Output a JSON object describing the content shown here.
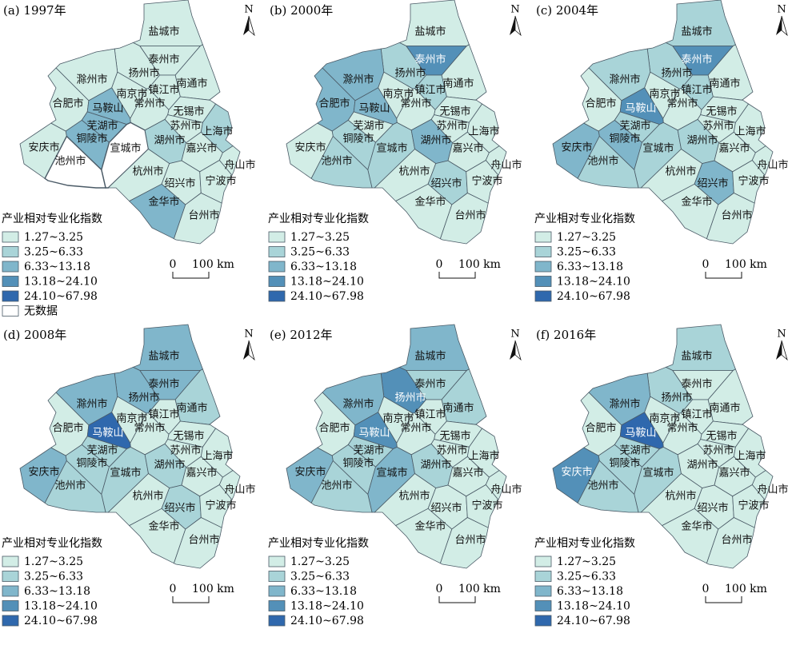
{
  "panels": [
    {
      "title": "(a) 1997年",
      "regions": [
        {
          "name": "盐城市",
          "color": "#d2ede6"
        },
        {
          "name": "泰州市",
          "color": "#d2ede6"
        },
        {
          "name": "扬州市",
          "color": "#d2ede6"
        },
        {
          "name": "南通市",
          "color": "#d2ede6"
        },
        {
          "name": "滁州市",
          "color": "#d2ede6"
        },
        {
          "name": "镇江市",
          "color": "#d2ede6"
        },
        {
          "name": "南京市",
          "color": "#d2ede6"
        },
        {
          "name": "合肥市",
          "color": "#d2ede6"
        },
        {
          "name": "马鞍山",
          "color": "#80b6cb"
        },
        {
          "name": "常州市",
          "color": "#d2ede6"
        },
        {
          "name": "无锡市",
          "color": "#d2ede6"
        },
        {
          "name": "苏州市",
          "color": "#d2ede6"
        },
        {
          "name": "上海市",
          "color": "#a9d4d8"
        },
        {
          "name": "芜湖市",
          "color": "#80b6cb"
        },
        {
          "name": "铜陵市",
          "color": "#80b6cb"
        },
        {
          "name": "宣城市",
          "color": "#ffffff"
        },
        {
          "name": "湖州市",
          "color": "#a9d4d8"
        },
        {
          "name": "安庆市",
          "color": "#d2ede6"
        },
        {
          "name": "池州市",
          "color": "#ffffff"
        },
        {
          "name": "嘉兴市",
          "color": "#d2ede6"
        },
        {
          "name": "舟山市",
          "color": "#d2ede6"
        },
        {
          "name": "杭州市",
          "color": "#d2ede6"
        },
        {
          "name": "绍兴市",
          "color": "#d2ede6"
        },
        {
          "name": "宁波市",
          "color": "#d2ede6"
        },
        {
          "name": "金华市",
          "color": "#80b6cb"
        },
        {
          "name": "台州市",
          "color": "#d2ede6"
        }
      ],
      "legend": {
        "title": "产业相对专业化指数",
        "classes": [
          {
            "label": "1.27~3.25",
            "color": "#d2ede6"
          },
          {
            "label": "3.25~6.33",
            "color": "#a9d4d8"
          },
          {
            "label": "6.33~13.18",
            "color": "#80b6cb"
          },
          {
            "label": "13.18~24.10",
            "color": "#5390b8"
          },
          {
            "label": "24.10~67.98",
            "color": "#2f68ad"
          },
          {
            "label": "无数据",
            "color": "#ffffff"
          }
        ]
      },
      "scale": {
        "start": "0",
        "end": "100 km"
      },
      "north": "N"
    },
    {
      "title": "(b) 2000年",
      "regions": [
        {
          "name": "盐城市",
          "color": "#d2ede6"
        },
        {
          "name": "泰州市",
          "color": "#5390b8"
        },
        {
          "name": "扬州市",
          "color": "#a9d4d8"
        },
        {
          "name": "南通市",
          "color": "#d2ede6"
        },
        {
          "name": "滁州市",
          "color": "#80b6cb"
        },
        {
          "name": "镇江市",
          "color": "#a9d4d8"
        },
        {
          "name": "南京市",
          "color": "#d2ede6"
        },
        {
          "name": "合肥市",
          "color": "#80b6cb"
        },
        {
          "name": "马鞍山",
          "color": "#80b6cb"
        },
        {
          "name": "常州市",
          "color": "#d2ede6"
        },
        {
          "name": "无锡市",
          "color": "#d2ede6"
        },
        {
          "name": "苏州市",
          "color": "#d2ede6"
        },
        {
          "name": "上海市",
          "color": "#d2ede6"
        },
        {
          "name": "芜湖市",
          "color": "#d2ede6"
        },
        {
          "name": "铜陵市",
          "color": "#a9d4d8"
        },
        {
          "name": "宣城市",
          "color": "#a9d4d8"
        },
        {
          "name": "湖州市",
          "color": "#80b6cb"
        },
        {
          "name": "安庆市",
          "color": "#d2ede6"
        },
        {
          "name": "池州市",
          "color": "#a9d4d8"
        },
        {
          "name": "嘉兴市",
          "color": "#d2ede6"
        },
        {
          "name": "舟山市",
          "color": "#d2ede6"
        },
        {
          "name": "杭州市",
          "color": "#d2ede6"
        },
        {
          "name": "绍兴市",
          "color": "#a9d4d8"
        },
        {
          "name": "宁波市",
          "color": "#d2ede6"
        },
        {
          "name": "金华市",
          "color": "#d2ede6"
        },
        {
          "name": "台州市",
          "color": "#d2ede6"
        }
      ],
      "legend": {
        "title": "产业相对专业化指数",
        "classes": [
          {
            "label": "1.27~3.25",
            "color": "#d2ede6"
          },
          {
            "label": "3.25~6.33",
            "color": "#a9d4d8"
          },
          {
            "label": "6.33~13.18",
            "color": "#80b6cb"
          },
          {
            "label": "13.18~24.10",
            "color": "#5390b8"
          },
          {
            "label": "24.10~67.98",
            "color": "#2f68ad"
          }
        ]
      },
      "scale": {
        "start": "0",
        "end": "100 km"
      },
      "north": "N"
    },
    {
      "title": "(c) 2004年",
      "regions": [
        {
          "name": "盐城市",
          "color": "#a9d4d8"
        },
        {
          "name": "泰州市",
          "color": "#5390b8"
        },
        {
          "name": "扬州市",
          "color": "#a9d4d8"
        },
        {
          "name": "南通市",
          "color": "#d2ede6"
        },
        {
          "name": "滁州市",
          "color": "#a9d4d8"
        },
        {
          "name": "镇江市",
          "color": "#a9d4d8"
        },
        {
          "name": "南京市",
          "color": "#d2ede6"
        },
        {
          "name": "合肥市",
          "color": "#d2ede6"
        },
        {
          "name": "马鞍山",
          "color": "#5390b8"
        },
        {
          "name": "常州市",
          "color": "#d2ede6"
        },
        {
          "name": "无锡市",
          "color": "#d2ede6"
        },
        {
          "name": "苏州市",
          "color": "#d2ede6"
        },
        {
          "name": "上海市",
          "color": "#d2ede6"
        },
        {
          "name": "芜湖市",
          "color": "#a9d4d8"
        },
        {
          "name": "铜陵市",
          "color": "#80b6cb"
        },
        {
          "name": "宣城市",
          "color": "#a9d4d8"
        },
        {
          "name": "湖州市",
          "color": "#a9d4d8"
        },
        {
          "name": "安庆市",
          "color": "#80b6cb"
        },
        {
          "name": "池州市",
          "color": "#a9d4d8"
        },
        {
          "name": "嘉兴市",
          "color": "#d2ede6"
        },
        {
          "name": "舟山市",
          "color": "#d2ede6"
        },
        {
          "name": "杭州市",
          "color": "#d2ede6"
        },
        {
          "name": "绍兴市",
          "color": "#80b6cb"
        },
        {
          "name": "宁波市",
          "color": "#d2ede6"
        },
        {
          "name": "金华市",
          "color": "#d2ede6"
        },
        {
          "name": "台州市",
          "color": "#d2ede6"
        }
      ],
      "legend": {
        "title": "产业相对专业化指数",
        "classes": [
          {
            "label": "1.27~3.25",
            "color": "#d2ede6"
          },
          {
            "label": "3.25~6.33",
            "color": "#a9d4d8"
          },
          {
            "label": "6.33~13.18",
            "color": "#80b6cb"
          },
          {
            "label": "13.18~24.10",
            "color": "#5390b8"
          },
          {
            "label": "24.10~67.98",
            "color": "#2f68ad"
          }
        ]
      },
      "scale": {
        "start": "0",
        "end": "100 km"
      },
      "north": "N"
    },
    {
      "title": "(d) 2008年",
      "regions": [
        {
          "name": "盐城市",
          "color": "#80b6cb"
        },
        {
          "name": "泰州市",
          "color": "#80b6cb"
        },
        {
          "name": "扬州市",
          "color": "#80b6cb"
        },
        {
          "name": "南通市",
          "color": "#a9d4d8"
        },
        {
          "name": "滁州市",
          "color": "#80b6cb"
        },
        {
          "name": "镇江市",
          "color": "#d2ede6"
        },
        {
          "name": "南京市",
          "color": "#d2ede6"
        },
        {
          "name": "合肥市",
          "color": "#d2ede6"
        },
        {
          "name": "马鞍山",
          "color": "#2f68ad"
        },
        {
          "name": "常州市",
          "color": "#d2ede6"
        },
        {
          "name": "无锡市",
          "color": "#d2ede6"
        },
        {
          "name": "苏州市",
          "color": "#d2ede6"
        },
        {
          "name": "上海市",
          "color": "#d2ede6"
        },
        {
          "name": "芜湖市",
          "color": "#a9d4d8"
        },
        {
          "name": "铜陵市",
          "color": "#a9d4d8"
        },
        {
          "name": "宣城市",
          "color": "#a9d4d8"
        },
        {
          "name": "湖州市",
          "color": "#a9d4d8"
        },
        {
          "name": "安庆市",
          "color": "#80b6cb"
        },
        {
          "name": "池州市",
          "color": "#a9d4d8"
        },
        {
          "name": "嘉兴市",
          "color": "#d2ede6"
        },
        {
          "name": "舟山市",
          "color": "#d2ede6"
        },
        {
          "name": "杭州市",
          "color": "#d2ede6"
        },
        {
          "name": "绍兴市",
          "color": "#a9d4d8"
        },
        {
          "name": "宁波市",
          "color": "#d2ede6"
        },
        {
          "name": "金华市",
          "color": "#d2ede6"
        },
        {
          "name": "台州市",
          "color": "#d2ede6"
        }
      ],
      "legend": {
        "title": "产业相对专业化指数",
        "classes": [
          {
            "label": "1.27~3.25",
            "color": "#d2ede6"
          },
          {
            "label": "3.25~6.33",
            "color": "#a9d4d8"
          },
          {
            "label": "6.33~13.18",
            "color": "#80b6cb"
          },
          {
            "label": "13.18~24.10",
            "color": "#5390b8"
          },
          {
            "label": "24.10~67.98",
            "color": "#2f68ad"
          }
        ]
      },
      "scale": {
        "start": "0",
        "end": "100 km"
      },
      "north": "N"
    },
    {
      "title": "(e) 2012年",
      "regions": [
        {
          "name": "盐城市",
          "color": "#80b6cb"
        },
        {
          "name": "泰州市",
          "color": "#a9d4d8"
        },
        {
          "name": "扬州市",
          "color": "#5390b8"
        },
        {
          "name": "南通市",
          "color": "#a9d4d8"
        },
        {
          "name": "滁州市",
          "color": "#80b6cb"
        },
        {
          "name": "镇江市",
          "color": "#d2ede6"
        },
        {
          "name": "南京市",
          "color": "#d2ede6"
        },
        {
          "name": "合肥市",
          "color": "#d2ede6"
        },
        {
          "name": "马鞍山",
          "color": "#5390b8"
        },
        {
          "name": "常州市",
          "color": "#d2ede6"
        },
        {
          "name": "无锡市",
          "color": "#d2ede6"
        },
        {
          "name": "苏州市",
          "color": "#d2ede6"
        },
        {
          "name": "上海市",
          "color": "#d2ede6"
        },
        {
          "name": "芜湖市",
          "color": "#a9d4d8"
        },
        {
          "name": "铜陵市",
          "color": "#a9d4d8"
        },
        {
          "name": "宣城市",
          "color": "#80b6cb"
        },
        {
          "name": "湖州市",
          "color": "#a9d4d8"
        },
        {
          "name": "安庆市",
          "color": "#80b6cb"
        },
        {
          "name": "池州市",
          "color": "#a9d4d8"
        },
        {
          "name": "嘉兴市",
          "color": "#d2ede6"
        },
        {
          "name": "舟山市",
          "color": "#d2ede6"
        },
        {
          "name": "杭州市",
          "color": "#d2ede6"
        },
        {
          "name": "绍兴市",
          "color": "#d2ede6"
        },
        {
          "name": "宁波市",
          "color": "#d2ede6"
        },
        {
          "name": "金华市",
          "color": "#d2ede6"
        },
        {
          "name": "台州市",
          "color": "#d2ede6"
        }
      ],
      "legend": {
        "title": "产业相对专业化指数",
        "classes": [
          {
            "label": "1.27~3.25",
            "color": "#d2ede6"
          },
          {
            "label": "3.25~6.33",
            "color": "#a9d4d8"
          },
          {
            "label": "6.33~13.18",
            "color": "#80b6cb"
          },
          {
            "label": "13.18~24.10",
            "color": "#5390b8"
          },
          {
            "label": "24.10~67.98",
            "color": "#2f68ad"
          }
        ]
      },
      "scale": {
        "start": "0",
        "end": "100 km"
      },
      "north": "N"
    },
    {
      "title": "(f) 2016年",
      "regions": [
        {
          "name": "盐城市",
          "color": "#a9d4d8"
        },
        {
          "name": "泰州市",
          "color": "#d2ede6"
        },
        {
          "name": "扬州市",
          "color": "#a9d4d8"
        },
        {
          "name": "南通市",
          "color": "#d2ede6"
        },
        {
          "name": "滁州市",
          "color": "#80b6cb"
        },
        {
          "name": "镇江市",
          "color": "#d2ede6"
        },
        {
          "name": "南京市",
          "color": "#d2ede6"
        },
        {
          "name": "合肥市",
          "color": "#d2ede6"
        },
        {
          "name": "马鞍山",
          "color": "#2f68ad"
        },
        {
          "name": "常州市",
          "color": "#d2ede6"
        },
        {
          "name": "无锡市",
          "color": "#d2ede6"
        },
        {
          "name": "苏州市",
          "color": "#d2ede6"
        },
        {
          "name": "上海市",
          "color": "#d2ede6"
        },
        {
          "name": "芜湖市",
          "color": "#a9d4d8"
        },
        {
          "name": "铜陵市",
          "color": "#a9d4d8"
        },
        {
          "name": "宣城市",
          "color": "#a9d4d8"
        },
        {
          "name": "湖州市",
          "color": "#d2ede6"
        },
        {
          "name": "安庆市",
          "color": "#5390b8"
        },
        {
          "name": "池州市",
          "color": "#a9d4d8"
        },
        {
          "name": "嘉兴市",
          "color": "#d2ede6"
        },
        {
          "name": "舟山市",
          "color": "#d2ede6"
        },
        {
          "name": "杭州市",
          "color": "#d2ede6"
        },
        {
          "name": "绍兴市",
          "color": "#d2ede6"
        },
        {
          "name": "宁波市",
          "color": "#d2ede6"
        },
        {
          "name": "金华市",
          "color": "#d2ede6"
        },
        {
          "name": "台州市",
          "color": "#d2ede6"
        }
      ],
      "legend": {
        "title": "产业相对专业化指数",
        "classes": [
          {
            "label": "1.27~3.25",
            "color": "#d2ede6"
          },
          {
            "label": "3.25~6.33",
            "color": "#a9d4d8"
          },
          {
            "label": "6.33~13.18",
            "color": "#80b6cb"
          },
          {
            "label": "13.18~24.10",
            "color": "#5390b8"
          },
          {
            "label": "24.10~67.98",
            "color": "#2f68ad"
          }
        ]
      },
      "scale": {
        "start": "0",
        "end": "100 km"
      },
      "north": "N"
    }
  ]
}
